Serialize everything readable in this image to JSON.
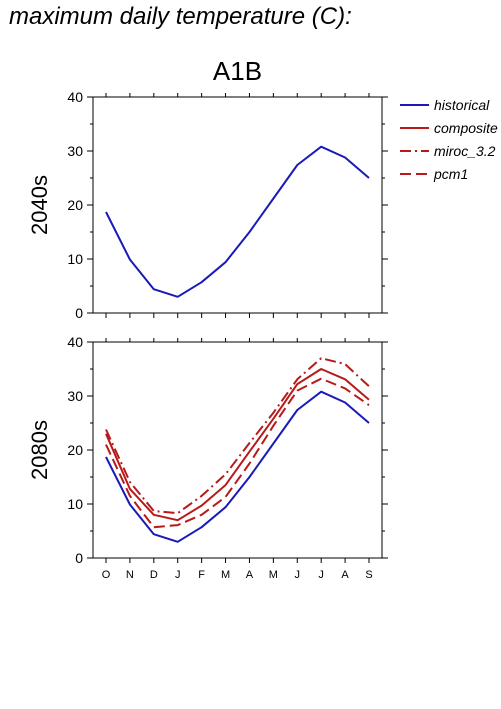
{
  "figure": {
    "title": "maximum daily temperature (C):"
  },
  "chart_data": {
    "type": "line",
    "title": "A1B",
    "xlabel": "",
    "ylabel": "",
    "categories": [
      "O",
      "N",
      "D",
      "J",
      "F",
      "M",
      "A",
      "M",
      "J",
      "J",
      "A",
      "S"
    ],
    "ylim": [
      0,
      40
    ],
    "yticks": [
      0,
      10,
      20,
      30,
      40
    ],
    "grid": false,
    "legend_position": "right",
    "legend": [
      {
        "name": "historical",
        "color": "#1a1ab8",
        "dash": "solid"
      },
      {
        "name": "composite",
        "color": "#b81a1a",
        "dash": "solid"
      },
      {
        "name": "miroc_3.2",
        "color": "#b81a1a",
        "dash": "dashdot"
      },
      {
        "name": "pcm1",
        "color": "#b81a1a",
        "dash": "dashed"
      }
    ],
    "panels": [
      {
        "label": "2040s",
        "series": [
          {
            "name": "historical",
            "values": [
              18.7,
              9.9,
              4.4,
              3.0,
              5.7,
              9.4,
              15.0,
              21.2,
              27.4,
              30.8,
              28.8,
              25.0
            ]
          }
        ]
      },
      {
        "label": "2080s",
        "series": [
          {
            "name": "historical",
            "values": [
              18.7,
              9.9,
              4.4,
              3.0,
              5.7,
              9.4,
              15.0,
              21.2,
              27.4,
              30.8,
              28.8,
              25.0
            ]
          },
          {
            "name": "composite",
            "values": [
              23.0,
              12.8,
              8.0,
              7.0,
              9.7,
              13.5,
              19.7,
              25.8,
              32.2,
              35.0,
              33.1,
              29.3
            ]
          },
          {
            "name": "miroc_3.2",
            "values": [
              23.8,
              14.1,
              8.7,
              8.3,
              11.5,
              15.5,
              21.3,
              26.9,
              33.1,
              37.0,
              35.9,
              31.8
            ]
          },
          {
            "name": "pcm1",
            "values": [
              21.0,
              11.5,
              5.7,
              6.1,
              8.0,
              11.3,
              17.5,
              24.5,
              31.0,
              33.2,
              31.4,
              28.3
            ]
          }
        ]
      }
    ]
  }
}
